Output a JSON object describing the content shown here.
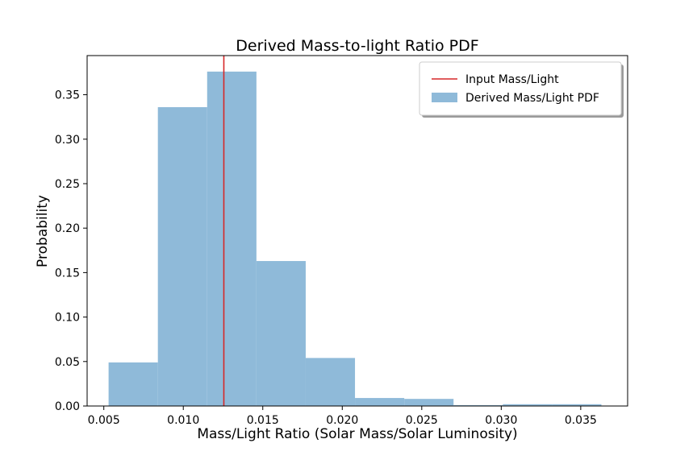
{
  "chart_data": {
    "type": "bar",
    "title": "Derived Mass-to-light Ratio PDF",
    "xlabel": "Mass/Light Ratio (Solar Mass/Solar Luminosity)",
    "ylabel": "Probability",
    "xlim": [
      0.00395,
      0.03795
    ],
    "ylim": [
      0,
      0.394
    ],
    "x_ticks": [
      0.005,
      0.01,
      0.015,
      0.02,
      0.025,
      0.03,
      0.035
    ],
    "x_tick_labels": [
      "0.005",
      "0.010",
      "0.015",
      "0.020",
      "0.025",
      "0.030",
      "0.035"
    ],
    "y_ticks": [
      0.0,
      0.05,
      0.1,
      0.15,
      0.2,
      0.25,
      0.3,
      0.35
    ],
    "y_tick_labels": [
      "0.00",
      "0.05",
      "0.10",
      "0.15",
      "0.20",
      "0.25",
      "0.30",
      "0.35"
    ],
    "grid": false,
    "legend_position": "top-right",
    "series": [
      {
        "name": "Derived Mass/Light PDF",
        "kind": "histogram",
        "color": "#8fbad9",
        "bins": [
          {
            "x0": 0.0053,
            "x1": 0.0084,
            "value": 0.049
          },
          {
            "x0": 0.0084,
            "x1": 0.0115,
            "value": 0.336
          },
          {
            "x0": 0.0115,
            "x1": 0.0146,
            "value": 0.376
          },
          {
            "x0": 0.0146,
            "x1": 0.0177,
            "value": 0.163
          },
          {
            "x0": 0.0177,
            "x1": 0.0208,
            "value": 0.054
          },
          {
            "x0": 0.0208,
            "x1": 0.0239,
            "value": 0.009
          },
          {
            "x0": 0.0239,
            "x1": 0.027,
            "value": 0.008
          },
          {
            "x0": 0.027,
            "x1": 0.0301,
            "value": 0.001
          },
          {
            "x0": 0.0301,
            "x1": 0.0332,
            "value": 0.002
          },
          {
            "x0": 0.0332,
            "x1": 0.0363,
            "value": 0.002
          }
        ]
      },
      {
        "name": "Input Mass/Light",
        "kind": "vline",
        "color": "#d62728",
        "x": 0.01255
      }
    ]
  }
}
